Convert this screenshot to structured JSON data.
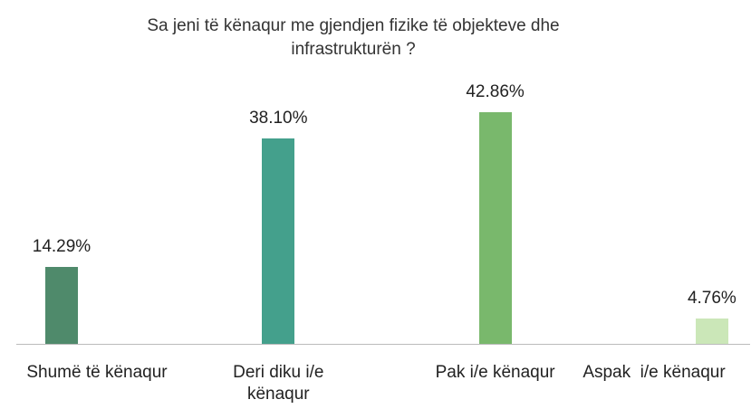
{
  "chart_data": {
    "type": "bar",
    "title": "Sa jeni të kënaqur me gjendjen fizike të objekteve dhe infrastrukturën ?",
    "categories": [
      "Shumë të kënaqur",
      "Deri diku i/e kënaqur",
      "Pak i/e kënaqur",
      "Aspak  i/e kënaqur"
    ],
    "values": [
      14.29,
      38.1,
      42.86,
      4.76
    ],
    "value_labels": [
      "14.29%",
      "38.10%",
      "42.86%",
      "4.76%"
    ],
    "colors": [
      "#4f8a6b",
      "#44a08c",
      "#79b86c",
      "#cbe7b8"
    ]
  }
}
